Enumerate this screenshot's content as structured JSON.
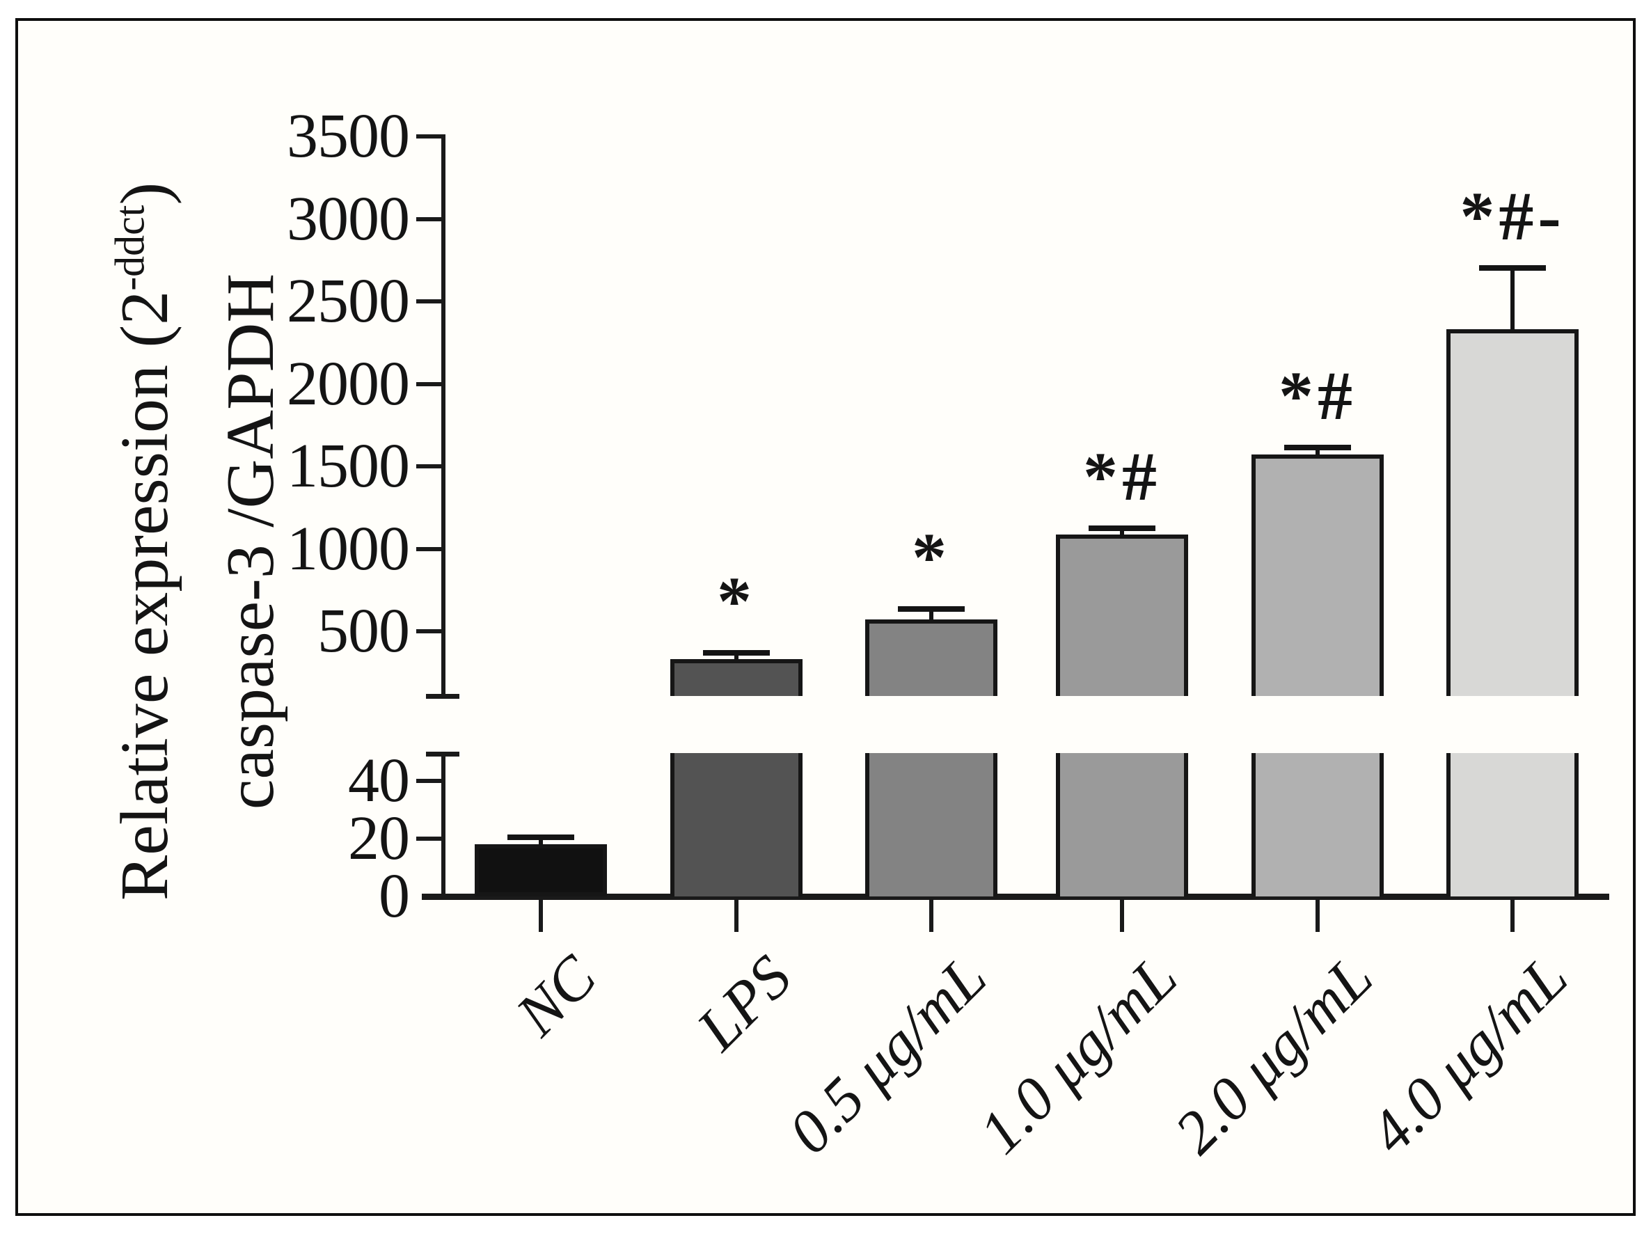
{
  "figure": {
    "ylabel_line1_pre": "Relative expression (2",
    "ylabel_sup": "-ddct",
    "ylabel_line1_post": ")",
    "ylabel_line2": "caspase-3 /GAPDH"
  },
  "chart_data": {
    "type": "bar",
    "title": "",
    "xlabel": "",
    "ylabel": "Relative expression (2^-ddct) caspase-3 /GAPDH",
    "broken_y_axis": true,
    "categories": [
      "NC",
      "LPS",
      "0.5 μg/mL",
      "1.0 μg/mL",
      "2.0 μg/mL",
      "4.0 μg/mL"
    ],
    "values": [
      18,
      330,
      572,
      1085,
      1570,
      2330
    ],
    "errors_plus": [
      2.5,
      40,
      62,
      38,
      45,
      372
    ],
    "annotations": [
      "",
      "*",
      "*",
      "*#",
      "*#",
      "*#-"
    ],
    "bar_colors": [
      "#111111",
      "#535353",
      "#838383",
      "#9a9a9a",
      "#b1b1b1",
      "#d8d8d6"
    ],
    "outline_color": "#161616",
    "grid": false,
    "legend": false,
    "axis": {
      "upper_ticks": [
        3500,
        3000,
        2500,
        2000,
        1500,
        1000,
        500
      ],
      "upper_tick_labels": [
        "3500",
        "3000",
        "2500",
        "2000",
        "1500",
        "1000",
        "500"
      ],
      "upper_range": [
        110,
        3500
      ],
      "lower_ticks": [
        40,
        20,
        0
      ],
      "lower_tick_labels": [
        "40",
        "20",
        "0"
      ],
      "lower_range": [
        0,
        49
      ]
    }
  }
}
